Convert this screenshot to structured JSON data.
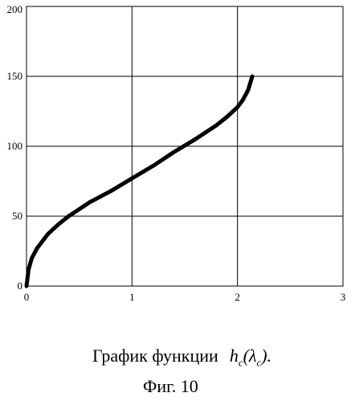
{
  "chart_data": {
    "type": "line",
    "title": "",
    "xlabel": "",
    "ylabel": "",
    "xlim": [
      0,
      3
    ],
    "ylim": [
      0,
      200
    ],
    "x_ticks": [
      "0",
      "1",
      "2",
      "3"
    ],
    "y_ticks": [
      "0",
      "50",
      "100",
      "150",
      "200"
    ],
    "grid": true,
    "legend": "none",
    "series": [
      {
        "color": "#000000",
        "x": [
          0,
          0.02,
          0.05,
          0.1,
          0.2,
          0.3,
          0.4,
          0.5,
          0.6,
          0.8,
          1.0,
          1.2,
          1.4,
          1.6,
          1.8,
          1.9,
          2.0,
          2.05,
          2.1,
          2.14
        ],
        "y": [
          0,
          12,
          20,
          27,
          37,
          44,
          50,
          55,
          60,
          68,
          77,
          86,
          96,
          105,
          115,
          121,
          128,
          133,
          140,
          150
        ]
      }
    ]
  },
  "caption": {
    "text": "График функции",
    "math": "h",
    "math_sub": "c",
    "math_open": "(λ",
    "math_sub2": "c",
    "math_close": ")."
  },
  "figure_label": "Фиг. 10"
}
